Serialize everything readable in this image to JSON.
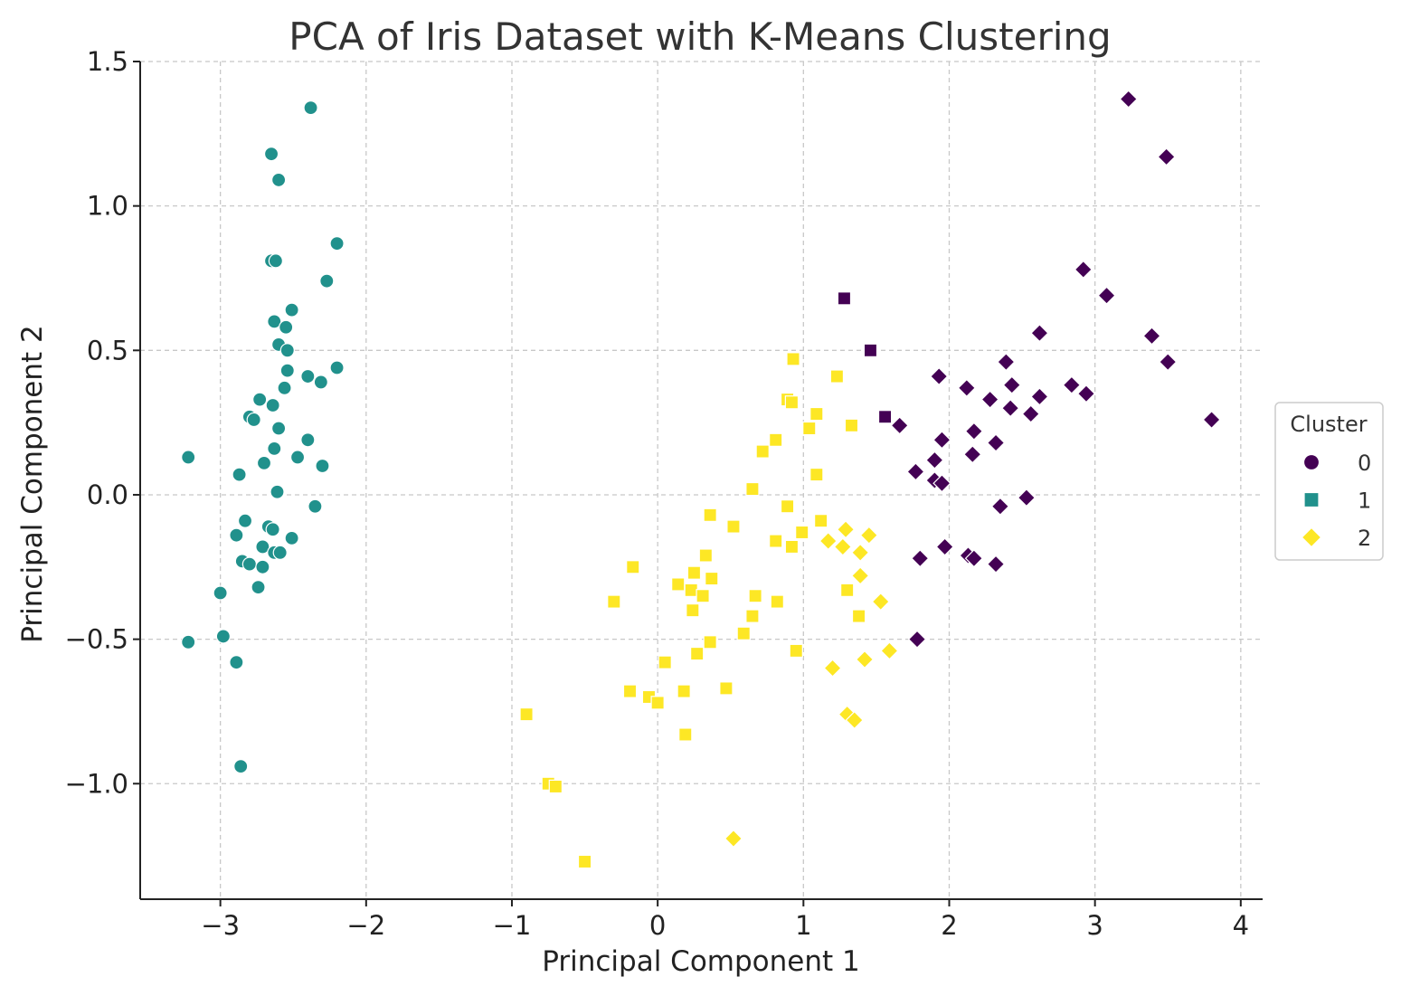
{
  "chart_data": {
    "type": "scatter",
    "title": "PCA of Iris Dataset with K-Means Clustering",
    "xlabel": "Principal Component 1",
    "ylabel": "Principal Component 2",
    "xlim": [
      -3.55,
      4.15
    ],
    "ylim": [
      -1.4,
      1.5
    ],
    "xticks": [
      -3,
      -2,
      -1,
      0,
      1,
      2,
      3,
      4
    ],
    "xtick_labels": [
      "−3",
      "−2",
      "−1",
      "0",
      "1",
      "2",
      "3",
      "4"
    ],
    "yticks": [
      -1.0,
      -0.5,
      0.0,
      0.5,
      1.0,
      1.5
    ],
    "ytick_labels": [
      "−1.0",
      "−0.5",
      "0.0",
      "0.5",
      "1.0",
      "1.5"
    ],
    "grid": true,
    "legend": {
      "title": "Cluster",
      "placement": "right-center"
    },
    "series": [
      {
        "name": "0",
        "legend_marker": "circle",
        "color": "#440154",
        "points": [
          {
            "x": 1.28,
            "y": 0.68,
            "m": "square"
          },
          {
            "x": 1.46,
            "y": 0.5,
            "m": "square"
          },
          {
            "x": 1.56,
            "y": 0.27,
            "m": "square"
          },
          {
            "x": 3.23,
            "y": 1.37,
            "m": "diamond"
          },
          {
            "x": 3.49,
            "y": 1.17,
            "m": "diamond"
          },
          {
            "x": 2.92,
            "y": 0.78,
            "m": "diamond"
          },
          {
            "x": 3.08,
            "y": 0.69,
            "m": "diamond"
          },
          {
            "x": 2.62,
            "y": 0.56,
            "m": "diamond"
          },
          {
            "x": 3.39,
            "y": 0.55,
            "m": "diamond"
          },
          {
            "x": 3.5,
            "y": 0.46,
            "m": "diamond"
          },
          {
            "x": 2.39,
            "y": 0.46,
            "m": "diamond"
          },
          {
            "x": 1.93,
            "y": 0.41,
            "m": "diamond"
          },
          {
            "x": 2.12,
            "y": 0.37,
            "m": "diamond"
          },
          {
            "x": 2.43,
            "y": 0.38,
            "m": "diamond"
          },
          {
            "x": 2.84,
            "y": 0.38,
            "m": "diamond"
          },
          {
            "x": 2.94,
            "y": 0.35,
            "m": "diamond"
          },
          {
            "x": 2.28,
            "y": 0.33,
            "m": "diamond"
          },
          {
            "x": 2.62,
            "y": 0.34,
            "m": "diamond"
          },
          {
            "x": 2.42,
            "y": 0.3,
            "m": "diamond"
          },
          {
            "x": 2.56,
            "y": 0.28,
            "m": "diamond"
          },
          {
            "x": 3.8,
            "y": 0.26,
            "m": "diamond"
          },
          {
            "x": 1.66,
            "y": 0.24,
            "m": "diamond"
          },
          {
            "x": 2.17,
            "y": 0.22,
            "m": "diamond"
          },
          {
            "x": 1.95,
            "y": 0.19,
            "m": "diamond"
          },
          {
            "x": 2.32,
            "y": 0.18,
            "m": "diamond"
          },
          {
            "x": 2.16,
            "y": 0.14,
            "m": "diamond"
          },
          {
            "x": 1.9,
            "y": 0.12,
            "m": "diamond"
          },
          {
            "x": 1.77,
            "y": 0.08,
            "m": "diamond"
          },
          {
            "x": 1.9,
            "y": 0.05,
            "m": "diamond"
          },
          {
            "x": 1.95,
            "y": 0.04,
            "m": "diamond"
          },
          {
            "x": 2.53,
            "y": -0.01,
            "m": "diamond"
          },
          {
            "x": 2.35,
            "y": -0.04,
            "m": "diamond"
          },
          {
            "x": 1.97,
            "y": -0.18,
            "m": "diamond"
          },
          {
            "x": 2.13,
            "y": -0.21,
            "m": "diamond"
          },
          {
            "x": 2.17,
            "y": -0.22,
            "m": "diamond"
          },
          {
            "x": 1.8,
            "y": -0.22,
            "m": "diamond"
          },
          {
            "x": 2.32,
            "y": -0.24,
            "m": "diamond"
          },
          {
            "x": 1.78,
            "y": -0.5,
            "m": "diamond"
          }
        ]
      },
      {
        "name": "1",
        "legend_marker": "square",
        "color": "#21918c",
        "points": [
          {
            "x": -2.38,
            "y": 1.34,
            "m": "circle"
          },
          {
            "x": -2.65,
            "y": 1.18,
            "m": "circle"
          },
          {
            "x": -2.6,
            "y": 1.09,
            "m": "circle"
          },
          {
            "x": -2.2,
            "y": 0.87,
            "m": "circle"
          },
          {
            "x": -2.65,
            "y": 0.81,
            "m": "circle"
          },
          {
            "x": -2.62,
            "y": 0.81,
            "m": "circle"
          },
          {
            "x": -2.27,
            "y": 0.74,
            "m": "circle"
          },
          {
            "x": -2.51,
            "y": 0.64,
            "m": "circle"
          },
          {
            "x": -2.63,
            "y": 0.6,
            "m": "circle"
          },
          {
            "x": -2.55,
            "y": 0.58,
            "m": "circle"
          },
          {
            "x": -2.6,
            "y": 0.52,
            "m": "circle"
          },
          {
            "x": -2.54,
            "y": 0.5,
            "m": "circle"
          },
          {
            "x": -2.54,
            "y": 0.43,
            "m": "circle"
          },
          {
            "x": -2.2,
            "y": 0.44,
            "m": "circle"
          },
          {
            "x": -2.4,
            "y": 0.41,
            "m": "circle"
          },
          {
            "x": -2.31,
            "y": 0.39,
            "m": "circle"
          },
          {
            "x": -2.56,
            "y": 0.37,
            "m": "circle"
          },
          {
            "x": -2.73,
            "y": 0.33,
            "m": "circle"
          },
          {
            "x": -2.64,
            "y": 0.31,
            "m": "circle"
          },
          {
            "x": -2.8,
            "y": 0.27,
            "m": "circle"
          },
          {
            "x": -2.77,
            "y": 0.26,
            "m": "circle"
          },
          {
            "x": -2.6,
            "y": 0.23,
            "m": "circle"
          },
          {
            "x": -2.4,
            "y": 0.19,
            "m": "circle"
          },
          {
            "x": -2.63,
            "y": 0.16,
            "m": "circle"
          },
          {
            "x": -3.22,
            "y": 0.13,
            "m": "circle"
          },
          {
            "x": -2.47,
            "y": 0.13,
            "m": "circle"
          },
          {
            "x": -2.7,
            "y": 0.11,
            "m": "circle"
          },
          {
            "x": -2.3,
            "y": 0.1,
            "m": "circle"
          },
          {
            "x": -2.87,
            "y": 0.07,
            "m": "circle"
          },
          {
            "x": -2.61,
            "y": 0.01,
            "m": "circle"
          },
          {
            "x": -2.35,
            "y": -0.04,
            "m": "circle"
          },
          {
            "x": -2.83,
            "y": -0.09,
            "m": "circle"
          },
          {
            "x": -2.67,
            "y": -0.11,
            "m": "circle"
          },
          {
            "x": -2.64,
            "y": -0.12,
            "m": "circle"
          },
          {
            "x": -2.89,
            "y": -0.14,
            "m": "circle"
          },
          {
            "x": -2.51,
            "y": -0.15,
            "m": "circle"
          },
          {
            "x": -2.71,
            "y": -0.18,
            "m": "circle"
          },
          {
            "x": -2.63,
            "y": -0.2,
            "m": "circle"
          },
          {
            "x": -2.59,
            "y": -0.2,
            "m": "circle"
          },
          {
            "x": -2.85,
            "y": -0.23,
            "m": "circle"
          },
          {
            "x": -2.8,
            "y": -0.24,
            "m": "circle"
          },
          {
            "x": -2.71,
            "y": -0.25,
            "m": "circle"
          },
          {
            "x": -2.74,
            "y": -0.32,
            "m": "circle"
          },
          {
            "x": -3.0,
            "y": -0.34,
            "m": "circle"
          },
          {
            "x": -2.98,
            "y": -0.49,
            "m": "circle"
          },
          {
            "x": -3.22,
            "y": -0.51,
            "m": "circle"
          },
          {
            "x": -2.89,
            "y": -0.58,
            "m": "circle"
          },
          {
            "x": -2.86,
            "y": -0.94,
            "m": "circle"
          }
        ]
      },
      {
        "name": "2",
        "legend_marker": "diamond",
        "color": "#fde725",
        "points": [
          {
            "x": 0.93,
            "y": 0.47,
            "m": "square"
          },
          {
            "x": 1.23,
            "y": 0.41,
            "m": "square"
          },
          {
            "x": 0.89,
            "y": 0.33,
            "m": "square"
          },
          {
            "x": 0.92,
            "y": 0.32,
            "m": "square"
          },
          {
            "x": 1.09,
            "y": 0.28,
            "m": "square"
          },
          {
            "x": 1.33,
            "y": 0.24,
            "m": "square"
          },
          {
            "x": 1.04,
            "y": 0.23,
            "m": "square"
          },
          {
            "x": 0.81,
            "y": 0.19,
            "m": "square"
          },
          {
            "x": 0.72,
            "y": 0.15,
            "m": "square"
          },
          {
            "x": 1.09,
            "y": 0.07,
            "m": "square"
          },
          {
            "x": 0.65,
            "y": 0.02,
            "m": "square"
          },
          {
            "x": 0.89,
            "y": -0.04,
            "m": "square"
          },
          {
            "x": 0.36,
            "y": -0.07,
            "m": "square"
          },
          {
            "x": 1.12,
            "y": -0.09,
            "m": "square"
          },
          {
            "x": 0.52,
            "y": -0.11,
            "m": "square"
          },
          {
            "x": 0.99,
            "y": -0.13,
            "m": "square"
          },
          {
            "x": 0.81,
            "y": -0.16,
            "m": "square"
          },
          {
            "x": 0.92,
            "y": -0.18,
            "m": "square"
          },
          {
            "x": 0.33,
            "y": -0.21,
            "m": "square"
          },
          {
            "x": -0.17,
            "y": -0.25,
            "m": "square"
          },
          {
            "x": 0.25,
            "y": -0.27,
            "m": "square"
          },
          {
            "x": 0.37,
            "y": -0.29,
            "m": "square"
          },
          {
            "x": 0.14,
            "y": -0.31,
            "m": "square"
          },
          {
            "x": 0.23,
            "y": -0.33,
            "m": "square"
          },
          {
            "x": 1.3,
            "y": -0.33,
            "m": "square"
          },
          {
            "x": 0.31,
            "y": -0.35,
            "m": "square"
          },
          {
            "x": 0.67,
            "y": -0.35,
            "m": "square"
          },
          {
            "x": -0.3,
            "y": -0.37,
            "m": "square"
          },
          {
            "x": 0.82,
            "y": -0.37,
            "m": "square"
          },
          {
            "x": 0.24,
            "y": -0.4,
            "m": "square"
          },
          {
            "x": 0.65,
            "y": -0.42,
            "m": "square"
          },
          {
            "x": 1.38,
            "y": -0.42,
            "m": "square"
          },
          {
            "x": 0.59,
            "y": -0.48,
            "m": "square"
          },
          {
            "x": 0.36,
            "y": -0.51,
            "m": "square"
          },
          {
            "x": 0.27,
            "y": -0.55,
            "m": "square"
          },
          {
            "x": 0.95,
            "y": -0.54,
            "m": "square"
          },
          {
            "x": 0.05,
            "y": -0.58,
            "m": "square"
          },
          {
            "x": -0.19,
            "y": -0.68,
            "m": "square"
          },
          {
            "x": 0.18,
            "y": -0.68,
            "m": "square"
          },
          {
            "x": 0.47,
            "y": -0.67,
            "m": "square"
          },
          {
            "x": -0.06,
            "y": -0.7,
            "m": "square"
          },
          {
            "x": 0.0,
            "y": -0.72,
            "m": "square"
          },
          {
            "x": -0.9,
            "y": -0.76,
            "m": "square"
          },
          {
            "x": 0.19,
            "y": -0.83,
            "m": "square"
          },
          {
            "x": -0.75,
            "y": -1.0,
            "m": "square"
          },
          {
            "x": -0.7,
            "y": -1.01,
            "m": "square"
          },
          {
            "x": -0.5,
            "y": -1.27,
            "m": "square"
          },
          {
            "x": 1.29,
            "y": -0.12,
            "m": "diamond"
          },
          {
            "x": 1.45,
            "y": -0.14,
            "m": "diamond"
          },
          {
            "x": 1.17,
            "y": -0.16,
            "m": "diamond"
          },
          {
            "x": 1.27,
            "y": -0.18,
            "m": "diamond"
          },
          {
            "x": 1.39,
            "y": -0.2,
            "m": "diamond"
          },
          {
            "x": 1.39,
            "y": -0.28,
            "m": "diamond"
          },
          {
            "x": 1.53,
            "y": -0.37,
            "m": "diamond"
          },
          {
            "x": 1.59,
            "y": -0.54,
            "m": "diamond"
          },
          {
            "x": 1.42,
            "y": -0.57,
            "m": "diamond"
          },
          {
            "x": 1.2,
            "y": -0.6,
            "m": "diamond"
          },
          {
            "x": 1.3,
            "y": -0.76,
            "m": "diamond"
          },
          {
            "x": 1.35,
            "y": -0.78,
            "m": "diamond"
          },
          {
            "x": 0.52,
            "y": -1.19,
            "m": "diamond"
          }
        ]
      }
    ]
  }
}
